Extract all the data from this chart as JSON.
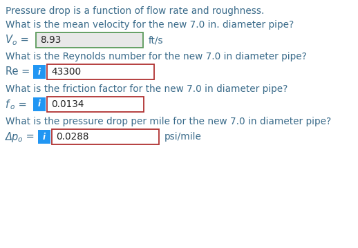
{
  "bg_color": "#ffffff",
  "text_color": "#3a6b8a",
  "header_text": "Pressure drop is a function of flow rate and roughness.",
  "q1_text": "What is the mean velocity for the new 7.0 in. diameter pipe?",
  "q1_label_main": "V",
  "q1_label_sub": "o",
  "q1_value": "8.93",
  "q1_unit": "ft/s",
  "q1_box_bg": "#e8e8e8",
  "q1_border_color": "#5a9a5a",
  "q2_text": "What is the Reynolds number for the new 7.0 in diameter pipe?",
  "q2_label": "Re =",
  "q2_value": "43300",
  "q3_text": "What is the friction factor for the new 7.0 in diameter pipe?",
  "q3_label_main": "f",
  "q3_label_sub": "o",
  "q3_value": "0.0134",
  "q4_text": "What is the pressure drop per mile for the new 7.0 in diameter pipe?",
  "q4_label_main": "Δp",
  "q4_label_sub": "o",
  "q4_value": "0.0288",
  "q4_unit": "psi/mile",
  "info_btn_color": "#2196F3",
  "answer_border_color": "#b03030",
  "answer_box_bg": "#ffffff",
  "fs_text": 9.8,
  "fs_label": 10.5,
  "fs_value": 9.8,
  "fs_info": 8.5
}
